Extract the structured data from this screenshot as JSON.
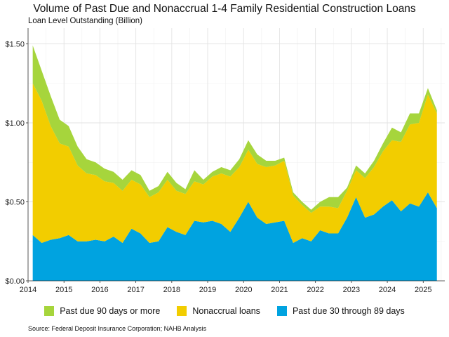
{
  "chart_data": {
    "type": "area",
    "stacked": true,
    "title": "Volume of Past Due and Nonaccrual 1-4 Family Residential Construction Loans",
    "subtitle": "Loan Level Outstanding (Billion)",
    "source": "Source: Federal Deposit Insurance Corporation; NAHB Analysis",
    "xlim": [
      2014,
      2025.6
    ],
    "ylim": [
      0,
      1.6
    ],
    "x_ticks": [
      2014,
      2015,
      2016,
      2017,
      2018,
      2019,
      2020,
      2021,
      2022,
      2023,
      2024,
      2025
    ],
    "y_ticks": [
      0,
      0.5,
      1.0,
      1.5
    ],
    "y_tick_labels": [
      "$0.00",
      "$0.50",
      "$1.00",
      "$1.50"
    ],
    "grid": true,
    "legend_position": "bottom",
    "x": [
      2014.13,
      2014.38,
      2014.63,
      2014.88,
      2015.13,
      2015.38,
      2015.63,
      2015.88,
      2016.13,
      2016.38,
      2016.63,
      2016.88,
      2017.13,
      2017.38,
      2017.63,
      2017.88,
      2018.13,
      2018.38,
      2018.63,
      2018.88,
      2019.13,
      2019.38,
      2019.63,
      2019.88,
      2020.13,
      2020.38,
      2020.63,
      2020.88,
      2021.13,
      2021.38,
      2021.63,
      2021.88,
      2022.13,
      2022.38,
      2022.63,
      2022.88,
      2023.13,
      2023.38,
      2023.63,
      2023.88,
      2024.13,
      2024.38,
      2024.63,
      2024.88,
      2025.13,
      2025.38
    ],
    "series": [
      {
        "name": "Past due 30 through 89 days",
        "color": "#00a3e0",
        "values": [
          0.29,
          0.24,
          0.26,
          0.27,
          0.29,
          0.25,
          0.25,
          0.26,
          0.25,
          0.28,
          0.24,
          0.33,
          0.3,
          0.24,
          0.25,
          0.34,
          0.31,
          0.29,
          0.38,
          0.37,
          0.38,
          0.36,
          0.31,
          0.4,
          0.5,
          0.4,
          0.36,
          0.37,
          0.38,
          0.24,
          0.27,
          0.25,
          0.32,
          0.3,
          0.3,
          0.4,
          0.53,
          0.4,
          0.42,
          0.47,
          0.51,
          0.44,
          0.49,
          0.47,
          0.56,
          0.46
        ]
      },
      {
        "name": "Nonaccrual loans",
        "color": "#f2cd00",
        "values": [
          0.96,
          0.9,
          0.72,
          0.6,
          0.56,
          0.48,
          0.43,
          0.41,
          0.38,
          0.34,
          0.33,
          0.31,
          0.31,
          0.29,
          0.31,
          0.3,
          0.26,
          0.26,
          0.25,
          0.24,
          0.28,
          0.32,
          0.35,
          0.32,
          0.33,
          0.34,
          0.36,
          0.36,
          0.38,
          0.3,
          0.21,
          0.18,
          0.15,
          0.17,
          0.16,
          0.17,
          0.17,
          0.25,
          0.3,
          0.35,
          0.38,
          0.44,
          0.5,
          0.53,
          0.62,
          0.6
        ]
      },
      {
        "name": "Past due 90 days or more",
        "color": "#a6d53c",
        "values": [
          0.24,
          0.19,
          0.19,
          0.15,
          0.13,
          0.12,
          0.09,
          0.08,
          0.08,
          0.07,
          0.07,
          0.06,
          0.06,
          0.04,
          0.04,
          0.05,
          0.05,
          0.03,
          0.07,
          0.03,
          0.03,
          0.04,
          0.04,
          0.05,
          0.06,
          0.06,
          0.04,
          0.03,
          0.02,
          0.02,
          0.02,
          0.02,
          0.03,
          0.06,
          0.07,
          0.02,
          0.03,
          0.03,
          0.04,
          0.05,
          0.08,
          0.06,
          0.07,
          0.06,
          0.04,
          0.02
        ]
      }
    ],
    "legend": [
      "Past due 90 days or more",
      "Nonaccrual loans",
      "Past due 30 through 89 days"
    ]
  }
}
